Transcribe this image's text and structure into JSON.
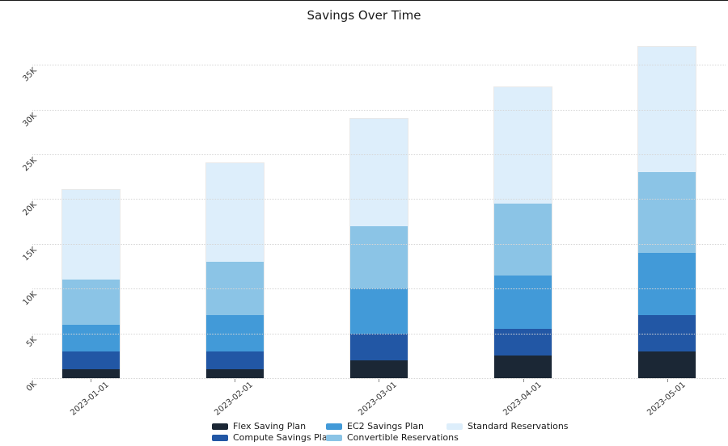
{
  "title": "Savings Over Time",
  "chart_data": {
    "type": "bar",
    "stacked": true,
    "title": "Savings Over Time",
    "xlabel": "",
    "ylabel": "",
    "value_unit": "K (thousands)",
    "categories": [
      "2023-01-01",
      "2023-02-01",
      "2023-03-01",
      "2023-04-01",
      "2023-05-01"
    ],
    "series": [
      {
        "name": "Flex Saving Plan",
        "color": "#1b2735",
        "values": [
          1,
          1,
          2,
          2.5,
          3
        ]
      },
      {
        "name": "Compute Savings Plan",
        "color": "#2257a5",
        "values": [
          2,
          2,
          3,
          3,
          4
        ]
      },
      {
        "name": "EC2 Savings Plan",
        "color": "#429ad8",
        "values": [
          3,
          4,
          5,
          6,
          7
        ]
      },
      {
        "name": "Convertible Reservations",
        "color": "#8bc4e6",
        "values": [
          5,
          6,
          7,
          8,
          9
        ]
      },
      {
        "name": "Standard Reservations",
        "color": "#ddeefb",
        "values": [
          10,
          11,
          12,
          13,
          14
        ]
      }
    ],
    "totals": [
      21,
      24,
      29,
      32.5,
      37
    ],
    "ytick_values": [
      0,
      5,
      10,
      15,
      20,
      25,
      30,
      35
    ],
    "ytick_labels": [
      "0K",
      "5K",
      "10K",
      "15K",
      "20K",
      "25K",
      "30K",
      "35K"
    ],
    "ylim": [
      0,
      38
    ],
    "grid": "horizontal-dotted",
    "legend_position": "bottom",
    "legend_columns": [
      [
        0,
        1
      ],
      [
        2,
        3
      ],
      [
        4
      ]
    ]
  }
}
